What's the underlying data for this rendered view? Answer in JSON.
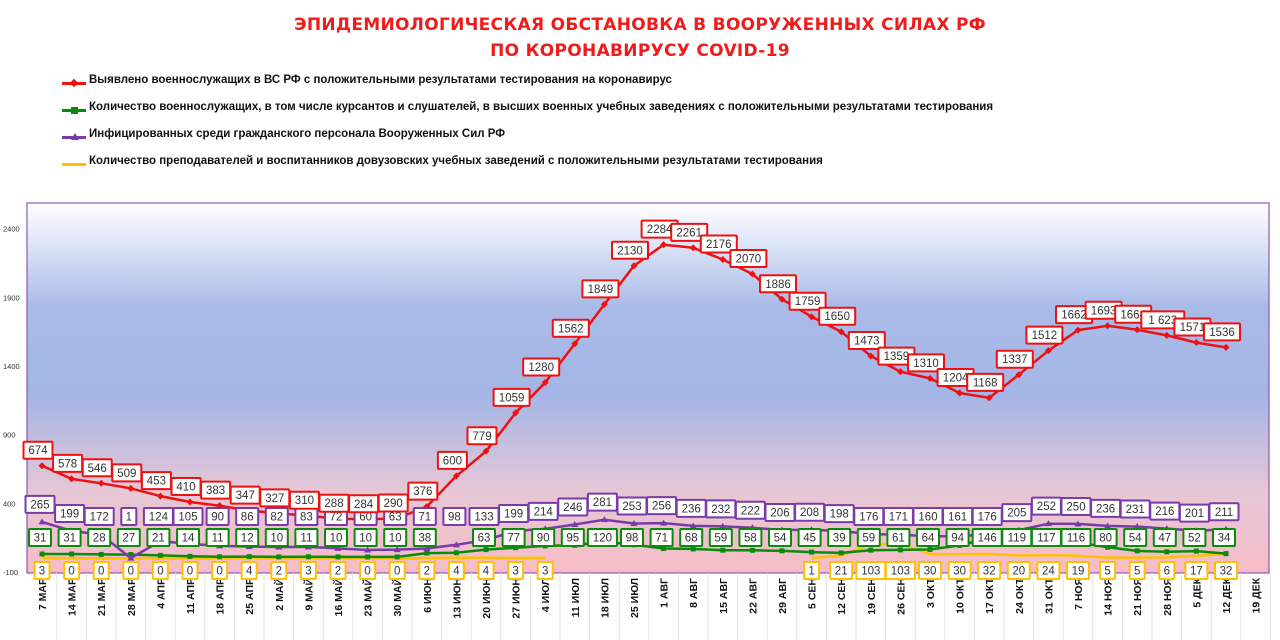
{
  "title": {
    "line1": "ЭПИДЕМИОЛОГИЧЕСКАЯ ОБСТАНОВКА В ВООРУЖЕННЫХ СИЛАХ РФ",
    "line2": "ПО КОРОНАВИРУСУ COVID-19"
  },
  "colors": {
    "red": "#ee1111",
    "green": "#0b8a0b",
    "purple": "#7a3aa8",
    "yellow": "#ffc000"
  },
  "chart_data": {
    "type": "line",
    "ylim": [
      -100,
      2500
    ],
    "y_ticks": [
      "-100",
      "400",
      "900",
      "1400",
      "1900",
      "2400"
    ],
    "categories": [
      "7 МАР",
      "14 МАР",
      "21 МАР",
      "28 МАР",
      "4 АПР",
      "11 АПР",
      "18 АПР",
      "25 АПР",
      "2 МАЙ",
      "9 МАЙ",
      "16 МАЙ",
      "23 МАЙ",
      "30 МАЙ",
      "6 ИЮН",
      "13 ИЮН",
      "20 ИЮН",
      "27 ИЮН",
      "4 ИЮЛ",
      "11 ИЮЛ",
      "18 ИЮЛ",
      "25 ИЮЛ",
      "1 АВГ",
      "8 АВГ",
      "15 АВГ",
      "22 АВГ",
      "29 АВГ",
      "5 СЕН",
      "12 СЕН",
      "19 СЕН",
      "26 СЕН",
      "3 ОКТ",
      "10 ОКТ",
      "17 ОКТ",
      "24 ОКТ",
      "31 ОКТ",
      "7 НОЯ",
      "14 НОЯ",
      "21 НОЯ",
      "28 НОЯ",
      "5 ДЕК",
      "12 ДЕК",
      "19 ДЕК"
    ],
    "series": [
      {
        "name": "Выявлено военнослужащих в ВС РФ с положительными результатами тестирования на коронавирус",
        "color": "#ee1111",
        "marker": "diamond",
        "values": [
          674,
          578,
          546,
          509,
          453,
          410,
          383,
          347,
          327,
          310,
          288,
          284,
          290,
          376,
          600,
          779,
          1059,
          1280,
          1562,
          1849,
          2130,
          2284,
          2261,
          2176,
          2070,
          1886,
          1759,
          1650,
          1473,
          1359,
          1310,
          1204,
          1168,
          1337,
          1512,
          1662,
          1693,
          1664,
          1623,
          1571,
          1536,
          null
        ],
        "labels": [
          "674",
          "578",
          "546",
          "509",
          "453",
          "410",
          "383",
          "347",
          "327",
          "310",
          "288",
          "284",
          "290",
          "376",
          "600",
          "779",
          "1059",
          "1280",
          "1562",
          "1849",
          "2130",
          "2284",
          "2261",
          "2176",
          "2070",
          "1886",
          "1759",
          "1650",
          "1473",
          "1359",
          "1310",
          "1204",
          "1168",
          "1337",
          "1512",
          "1662",
          "1693",
          "1664",
          "1 623",
          "1571",
          "1536",
          ""
        ]
      },
      {
        "name": "Количество военнослужащих, в том числе курсантов и слушателей, в высших военных учебных заведениях с положительными результатами тестирования",
        "color": "#0b8a0b",
        "marker": "square",
        "values": [
          31,
          31,
          28,
          27,
          21,
          14,
          11,
          12,
          10,
          11,
          10,
          10,
          10,
          38,
          40,
          63,
          77,
          90,
          95,
          120,
          98,
          71,
          68,
          59,
          58,
          54,
          45,
          39,
          59,
          61,
          64,
          94,
          146,
          119,
          117,
          116,
          80,
          54,
          47,
          52,
          34,
          null
        ],
        "labels": [
          "31",
          "31",
          "28",
          "27",
          "21",
          "14",
          "11",
          "12",
          "10",
          "11",
          "10",
          "10",
          "10",
          "38",
          "",
          "63",
          "77",
          "90",
          "95",
          "120",
          "98",
          "71",
          "68",
          "59",
          "58",
          "54",
          "45",
          "39",
          "59",
          "61",
          "64",
          "94",
          "146",
          "119",
          "117",
          "116",
          "80",
          "54",
          "47",
          "52",
          "34",
          ""
        ]
      },
      {
        "name": "Инфицированных среди гражданского персонала Вооруженных Сил РФ",
        "color": "#7a3aa8",
        "marker": "triangle",
        "values": [
          265,
          199,
          172,
          1,
          124,
          105,
          90,
          86,
          82,
          83,
          72,
          60,
          63,
          71,
          98,
          133,
          199,
          214,
          246,
          281,
          253,
          256,
          236,
          232,
          222,
          206,
          208,
          198,
          176,
          171,
          160,
          161,
          176,
          205,
          252,
          250,
          236,
          231,
          216,
          201,
          211,
          null
        ],
        "labels": [
          "265",
          "199",
          "172",
          "1",
          "124",
          "105",
          "90",
          "86",
          "82",
          "83",
          "72",
          "60",
          "63",
          "71",
          "98",
          "133",
          "199",
          "214",
          "246",
          "281",
          "253",
          "256",
          "236",
          "232",
          "222",
          "206",
          "208",
          "198",
          "176",
          "171",
          "160",
          "161",
          "176",
          "205",
          "252",
          "250",
          "236",
          "231",
          "216",
          "201",
          "211",
          ""
        ]
      },
      {
        "name": "Количество преподавателей и воспитанников довузовских учебных заведений с положительными результатами тестирования",
        "color": "#ffc000",
        "marker": "dash",
        "values": [
          3,
          0,
          0,
          0,
          0,
          0,
          0,
          4,
          2,
          3,
          2,
          0,
          0,
          2,
          4,
          4,
          3,
          3,
          null,
          null,
          null,
          null,
          null,
          null,
          null,
          null,
          1,
          21,
          103,
          103,
          30,
          30,
          32,
          20,
          24,
          19,
          5,
          5,
          6,
          17,
          32,
          null
        ],
        "labels": [
          "3",
          "0",
          "0",
          "0",
          "0",
          "0",
          "0",
          "4",
          "2",
          "3",
          "2",
          "0",
          "0",
          "2",
          "4",
          "4",
          "3",
          "3",
          "",
          "",
          "",
          "",
          "",
          "",
          "",
          "",
          "1",
          "21",
          "103",
          "103",
          "30",
          "30",
          "32",
          "20",
          "24",
          "19",
          "5",
          "5",
          "6",
          "17",
          "32",
          ""
        ]
      }
    ]
  }
}
